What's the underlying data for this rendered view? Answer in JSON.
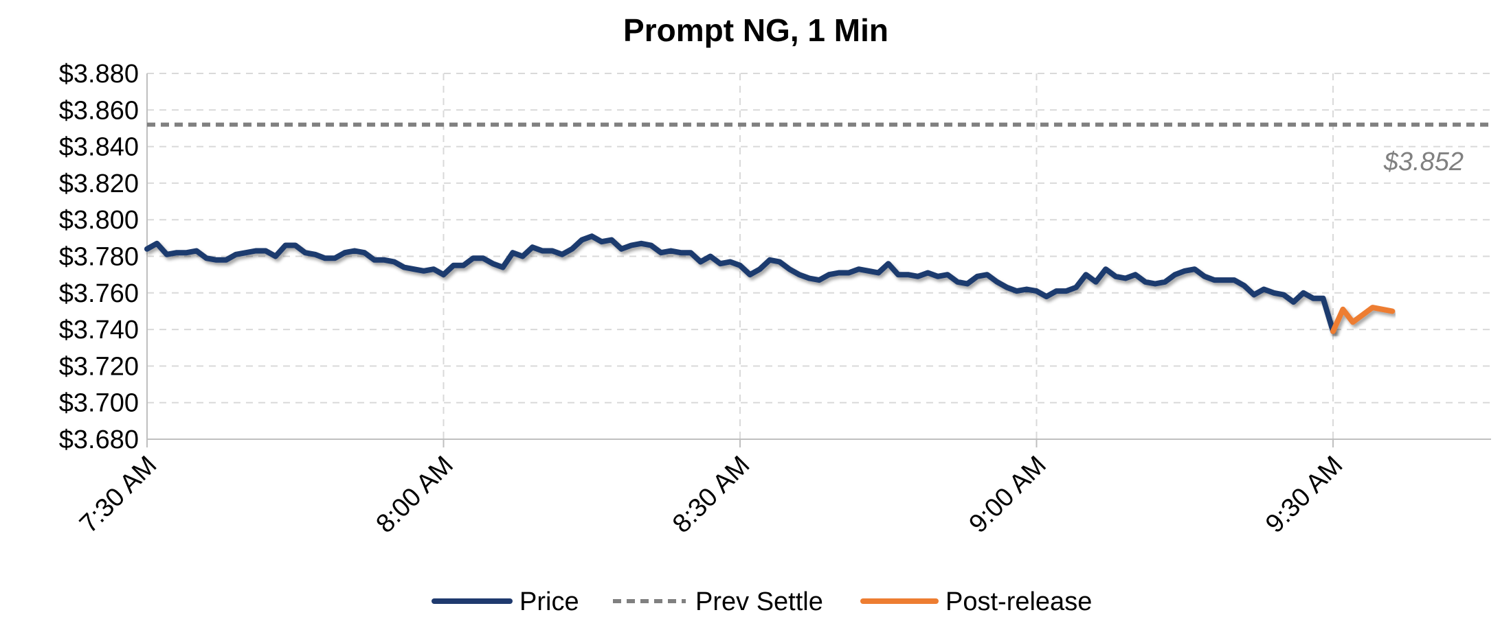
{
  "chart_data": {
    "type": "line",
    "title": "Prompt NG, 1 Min",
    "xlabel": "",
    "ylabel": "",
    "x_ticks": [
      "7:30 AM",
      "8:00 AM",
      "8:30 AM",
      "9:00 AM",
      "9:30 AM"
    ],
    "x_range_minutes_after_730": [
      0,
      136
    ],
    "y_ticks": [
      "$3.680",
      "$3.700",
      "$3.720",
      "$3.740",
      "$3.760",
      "$3.780",
      "$3.800",
      "$3.820",
      "$3.840",
      "$3.860",
      "$3.880"
    ],
    "ylim": [
      3.68,
      3.88
    ],
    "grid": true,
    "legend_position": "bottom",
    "annotation": "$3.852",
    "colors": {
      "price": "#1f3a6e",
      "prev_settle": "#808080",
      "post_release": "#ed7d31",
      "grid": "#d9d9d9"
    },
    "series": [
      {
        "name": "Price",
        "style": "solid",
        "x": [
          0,
          1,
          2,
          3,
          4,
          5,
          6,
          7,
          8,
          9,
          10,
          11,
          12,
          13,
          14,
          15,
          16,
          17,
          18,
          19,
          20,
          21,
          22,
          23,
          24,
          25,
          26,
          27,
          28,
          29,
          30,
          31,
          32,
          33,
          34,
          35,
          36,
          37,
          38,
          39,
          40,
          41,
          42,
          43,
          44,
          45,
          46,
          47,
          48,
          49,
          50,
          51,
          52,
          53,
          54,
          55,
          56,
          57,
          58,
          59,
          60,
          61,
          62,
          63,
          64,
          65,
          66,
          67,
          68,
          69,
          70,
          71,
          72,
          73,
          74,
          75,
          76,
          77,
          78,
          79,
          80,
          81,
          82,
          83,
          84,
          85,
          86,
          87,
          88,
          89,
          90,
          91,
          92,
          93,
          94,
          95,
          96,
          97,
          98,
          99,
          100,
          101,
          102,
          103,
          104,
          105,
          106,
          107,
          108,
          109,
          110,
          111,
          112,
          113,
          114,
          115,
          116,
          117,
          118,
          119,
          120
        ],
        "values": [
          3.784,
          3.787,
          3.781,
          3.782,
          3.782,
          3.783,
          3.779,
          3.778,
          3.778,
          3.781,
          3.782,
          3.783,
          3.783,
          3.78,
          3.786,
          3.786,
          3.782,
          3.781,
          3.779,
          3.779,
          3.782,
          3.783,
          3.782,
          3.778,
          3.778,
          3.777,
          3.774,
          3.773,
          3.772,
          3.773,
          3.77,
          3.775,
          3.775,
          3.779,
          3.779,
          3.776,
          3.774,
          3.782,
          3.78,
          3.785,
          3.783,
          3.783,
          3.781,
          3.784,
          3.789,
          3.791,
          3.788,
          3.789,
          3.784,
          3.786,
          3.787,
          3.786,
          3.782,
          3.783,
          3.782,
          3.782,
          3.777,
          3.78,
          3.776,
          3.777,
          3.775,
          3.77,
          3.773,
          3.778,
          3.777,
          3.773,
          3.77,
          3.768,
          3.767,
          3.77,
          3.771,
          3.771,
          3.773,
          3.772,
          3.771,
          3.776,
          3.77,
          3.77,
          3.769,
          3.771,
          3.769,
          3.77,
          3.766,
          3.765,
          3.769,
          3.77,
          3.766,
          3.763,
          3.761,
          3.762,
          3.761,
          3.758,
          3.761,
          3.761,
          3.763,
          3.77,
          3.766,
          3.773,
          3.769,
          3.768,
          3.77,
          3.766,
          3.765,
          3.766,
          3.77,
          3.772,
          3.773,
          3.769,
          3.767,
          3.767,
          3.767,
          3.764,
          3.759,
          3.762,
          3.76,
          3.759,
          3.755,
          3.76,
          3.757,
          3.757,
          3.739
        ]
      },
      {
        "name": "Prev Settle",
        "style": "dashed",
        "x": [
          0,
          136
        ],
        "values": [
          3.852,
          3.852
        ]
      },
      {
        "name": "Post-release",
        "style": "solid",
        "x": [
          120,
          121,
          122,
          123,
          124,
          125,
          126
        ],
        "values": [
          3.739,
          3.751,
          3.744,
          3.748,
          3.752,
          3.751,
          3.75
        ]
      }
    ]
  }
}
